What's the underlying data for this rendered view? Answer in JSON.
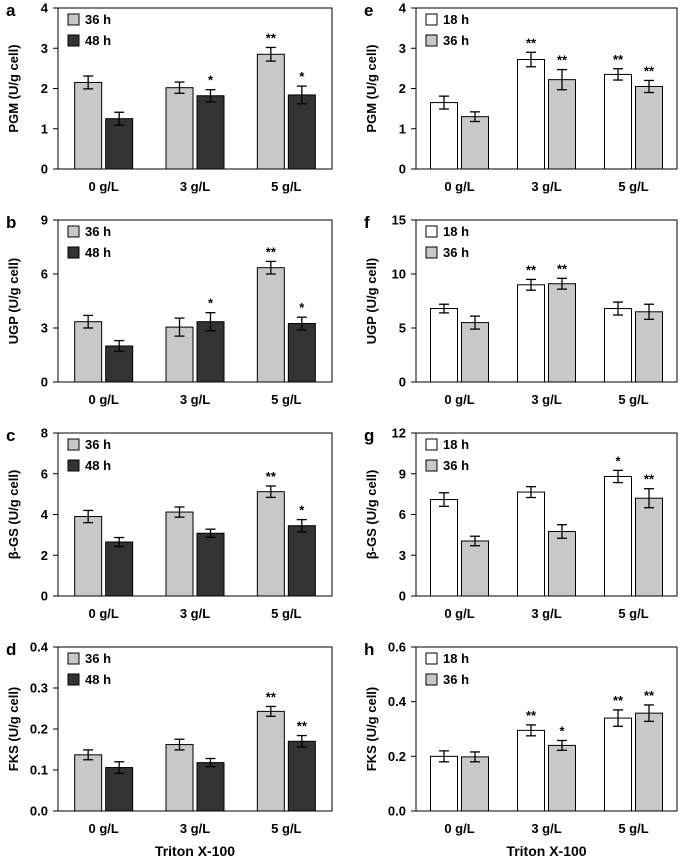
{
  "chart_data": [
    {
      "panel": "a",
      "type": "bar",
      "ylabel": "PGM (U/g cell)",
      "ylim": [
        0,
        4
      ],
      "yticks": [
        "0",
        "1",
        "2",
        "3",
        "4"
      ],
      "yticks_v": [
        0,
        1,
        2,
        3,
        4
      ],
      "categories": [
        "0 g/L",
        "3 g/L",
        "5 g/L"
      ],
      "series": [
        {
          "name": "36 h",
          "color": "#c8c8c8",
          "values": [
            2.15,
            2.02,
            2.85
          ],
          "errors": [
            0.16,
            0.14,
            0.17
          ],
          "sig": [
            "",
            "",
            "**"
          ]
        },
        {
          "name": "48 h",
          "color": "#333333",
          "values": [
            1.25,
            1.82,
            1.84
          ],
          "errors": [
            0.16,
            0.15,
            0.22
          ],
          "sig": [
            "",
            "*",
            "*"
          ]
        }
      ]
    },
    {
      "panel": "b",
      "type": "bar",
      "ylabel": "UGP (U/g cell)",
      "ylim": [
        0,
        9
      ],
      "yticks": [
        "0",
        "3",
        "6",
        "9"
      ],
      "yticks_v": [
        0,
        3,
        6,
        9
      ],
      "categories": [
        "0 g/L",
        "3 g/L",
        "5 g/L"
      ],
      "series": [
        {
          "name": "36 h",
          "color": "#c8c8c8",
          "values": [
            3.35,
            3.05,
            6.35
          ],
          "errors": [
            0.35,
            0.5,
            0.35
          ],
          "sig": [
            "",
            "",
            "**"
          ]
        },
        {
          "name": "48 h",
          "color": "#333333",
          "values": [
            2.0,
            3.35,
            3.25
          ],
          "errors": [
            0.3,
            0.5,
            0.35
          ],
          "sig": [
            "",
            "*",
            "*"
          ]
        }
      ]
    },
    {
      "panel": "c",
      "type": "bar",
      "ylabel": "β-GS (U/g cell)",
      "ylim": [
        0,
        8
      ],
      "yticks": [
        "0",
        "2",
        "4",
        "6",
        "8"
      ],
      "yticks_v": [
        0,
        2,
        4,
        6,
        8
      ],
      "categories": [
        "0 g/L",
        "3 g/L",
        "5 g/L"
      ],
      "series": [
        {
          "name": "36 h",
          "color": "#c8c8c8",
          "values": [
            3.9,
            4.12,
            5.12
          ],
          "errors": [
            0.3,
            0.25,
            0.28
          ],
          "sig": [
            "",
            "",
            "**"
          ]
        },
        {
          "name": "48 h",
          "color": "#333333",
          "values": [
            2.65,
            3.08,
            3.45
          ],
          "errors": [
            0.22,
            0.2,
            0.3
          ],
          "sig": [
            "",
            "",
            "*"
          ]
        }
      ]
    },
    {
      "panel": "d",
      "type": "bar",
      "ylabel": "FKS (U/g cell)",
      "ylim": [
        0,
        0.4
      ],
      "yticks": [
        "0.0",
        "0.1",
        "0.2",
        "0.3",
        "0.4"
      ],
      "yticks_v": [
        0,
        0.1,
        0.2,
        0.3,
        0.4
      ],
      "categories": [
        "0 g/L",
        "3 g/L",
        "5 g/L"
      ],
      "xlabel": "Triton X-100",
      "series": [
        {
          "name": "36 h",
          "color": "#c8c8c8",
          "values": [
            0.137,
            0.162,
            0.243
          ],
          "errors": [
            0.012,
            0.013,
            0.012
          ],
          "sig": [
            "",
            "",
            "**"
          ]
        },
        {
          "name": "48 h",
          "color": "#333333",
          "values": [
            0.106,
            0.118,
            0.17
          ],
          "errors": [
            0.014,
            0.01,
            0.014
          ],
          "sig": [
            "",
            "",
            "**"
          ]
        }
      ]
    },
    {
      "panel": "e",
      "type": "bar",
      "ylabel": "PGM (U/g cell)",
      "ylim": [
        0,
        4
      ],
      "yticks": [
        "0",
        "1",
        "2",
        "3",
        "4"
      ],
      "yticks_v": [
        0,
        1,
        2,
        3,
        4
      ],
      "categories": [
        "0 g/L",
        "3 g/L",
        "5 g/L"
      ],
      "series": [
        {
          "name": "18 h",
          "color": "#ffffff",
          "values": [
            1.65,
            2.72,
            2.35
          ],
          "errors": [
            0.16,
            0.18,
            0.14
          ],
          "sig": [
            "",
            "**",
            "**"
          ]
        },
        {
          "name": "36 h",
          "color": "#c8c8c8",
          "values": [
            1.3,
            2.22,
            2.05
          ],
          "errors": [
            0.12,
            0.25,
            0.15
          ],
          "sig": [
            "",
            "**",
            "**"
          ]
        }
      ]
    },
    {
      "panel": "f",
      "type": "bar",
      "ylabel": "UGP (U/g cell)",
      "ylim": [
        0,
        15
      ],
      "yticks": [
        "0",
        "5",
        "10",
        "15"
      ],
      "yticks_v": [
        0,
        5,
        10,
        15
      ],
      "categories": [
        "0 g/L",
        "3 g/L",
        "5 g/L"
      ],
      "series": [
        {
          "name": "18 h",
          "color": "#ffffff",
          "values": [
            6.8,
            9.0,
            6.8
          ],
          "errors": [
            0.4,
            0.5,
            0.6
          ],
          "sig": [
            "",
            "**",
            ""
          ]
        },
        {
          "name": "36 h",
          "color": "#c8c8c8",
          "values": [
            5.5,
            9.1,
            6.5
          ],
          "errors": [
            0.6,
            0.5,
            0.7
          ],
          "sig": [
            "",
            "**",
            ""
          ]
        }
      ]
    },
    {
      "panel": "g",
      "type": "bar",
      "ylabel": "β-GS (U/g cell)",
      "ylim": [
        0,
        12
      ],
      "yticks": [
        "0",
        "3",
        "6",
        "9",
        "12"
      ],
      "yticks_v": [
        0,
        3,
        6,
        9,
        12
      ],
      "categories": [
        "0 g/L",
        "3 g/L",
        "5 g/L"
      ],
      "series": [
        {
          "name": "18 h",
          "color": "#ffffff",
          "values": [
            7.1,
            7.65,
            8.8
          ],
          "errors": [
            0.5,
            0.4,
            0.45
          ],
          "sig": [
            "",
            "",
            "*"
          ]
        },
        {
          "name": "36 h",
          "color": "#c8c8c8",
          "values": [
            4.05,
            4.75,
            7.2
          ],
          "errors": [
            0.35,
            0.5,
            0.7
          ],
          "sig": [
            "",
            "",
            "**"
          ]
        }
      ]
    },
    {
      "panel": "h",
      "type": "bar",
      "ylabel": "FKS (U/g cell)",
      "ylim": [
        0,
        0.6
      ],
      "yticks": [
        "0.0",
        "0.2",
        "0.4",
        "0.6"
      ],
      "yticks_v": [
        0,
        0.2,
        0.4,
        0.6
      ],
      "categories": [
        "0 g/L",
        "3 g/L",
        "5 g/L"
      ],
      "xlabel": "Triton X-100",
      "series": [
        {
          "name": "18 h",
          "color": "#ffffff",
          "values": [
            0.2,
            0.295,
            0.34
          ],
          "errors": [
            0.02,
            0.02,
            0.03
          ],
          "sig": [
            "",
            "**",
            "**"
          ]
        },
        {
          "name": "36 h",
          "color": "#c8c8c8",
          "values": [
            0.198,
            0.24,
            0.358
          ],
          "errors": [
            0.018,
            0.018,
            0.03
          ],
          "sig": [
            "",
            "*",
            "**"
          ]
        }
      ]
    }
  ]
}
